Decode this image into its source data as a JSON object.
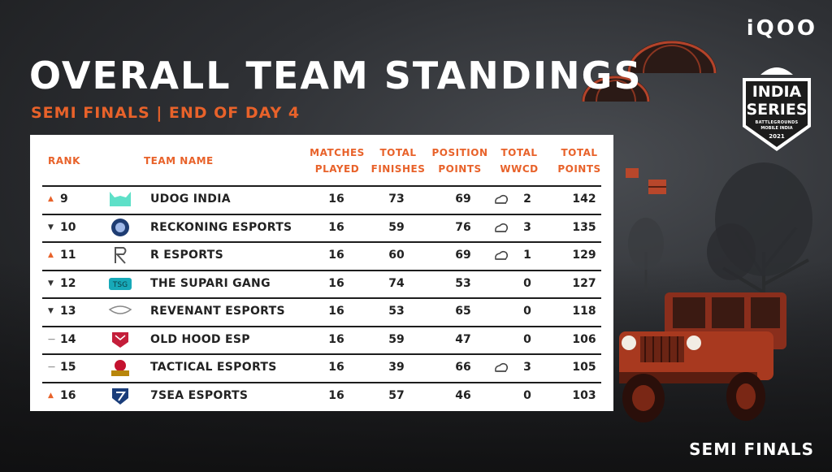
{
  "brand": "iQOO",
  "title": "OVERALL TEAM STANDINGS",
  "subtitle": "SEMI FINALS | END OF DAY 4",
  "badge": {
    "line1": "INDIA",
    "line2": "SERIES",
    "line3": "BATTLEGROUNDS",
    "line4": "MOBILE INDIA",
    "year": "2021"
  },
  "footer_label": "SEMI FINALS",
  "table": {
    "headers": {
      "rank": "RANK",
      "team": "TEAM NAME",
      "matches": [
        "MATCHES",
        "PLAYED"
      ],
      "finishes": [
        "TOTAL",
        "FINISHES"
      ],
      "position": [
        "POSITION",
        "POINTS"
      ],
      "wwcd": [
        "TOTAL",
        "WWCD"
      ],
      "total": [
        "TOTAL",
        "POINTS"
      ]
    },
    "rows": [
      {
        "trend": "up",
        "rank": "9",
        "team": "UDOG INDIA",
        "logo": "udog-logo",
        "matches": "16",
        "finishes": "73",
        "position": "69",
        "chicken": true,
        "wwcd": "2",
        "total": "142"
      },
      {
        "trend": "down",
        "rank": "10",
        "team": "RECKONING ESPORTS",
        "logo": "reckoning-logo",
        "matches": "16",
        "finishes": "59",
        "position": "76",
        "chicken": true,
        "wwcd": "3",
        "total": "135"
      },
      {
        "trend": "up",
        "rank": "11",
        "team": "R ESPORTS",
        "logo": "r-esports-logo",
        "matches": "16",
        "finishes": "60",
        "position": "69",
        "chicken": true,
        "wwcd": "1",
        "total": "129"
      },
      {
        "trend": "down",
        "rank": "12",
        "team": "THE SUPARI GANG",
        "logo": "supari-gang-logo",
        "matches": "16",
        "finishes": "74",
        "position": "53",
        "chicken": false,
        "wwcd": "0",
        "total": "127"
      },
      {
        "trend": "down",
        "rank": "13",
        "team": "REVENANT ESPORTS",
        "logo": "revenant-logo",
        "matches": "16",
        "finishes": "53",
        "position": "65",
        "chicken": false,
        "wwcd": "0",
        "total": "118"
      },
      {
        "trend": "same",
        "rank": "14",
        "team": "OLD HOOD ESP",
        "logo": "old-hood-logo",
        "matches": "16",
        "finishes": "59",
        "position": "47",
        "chicken": false,
        "wwcd": "0",
        "total": "106"
      },
      {
        "trend": "same",
        "rank": "15",
        "team": "TACTICAL ESPORTS",
        "logo": "tactical-logo",
        "matches": "16",
        "finishes": "39",
        "position": "66",
        "chicken": true,
        "wwcd": "3",
        "total": "105"
      },
      {
        "trend": "up",
        "rank": "16",
        "team": "7SEA ESPORTS",
        "logo": "7sea-logo",
        "matches": "16",
        "finishes": "57",
        "position": "46",
        "chicken": false,
        "wwcd": "0",
        "total": "103"
      }
    ]
  },
  "colors": {
    "accent": "#e8622a",
    "text": "#222222",
    "panel": "#ffffff"
  }
}
